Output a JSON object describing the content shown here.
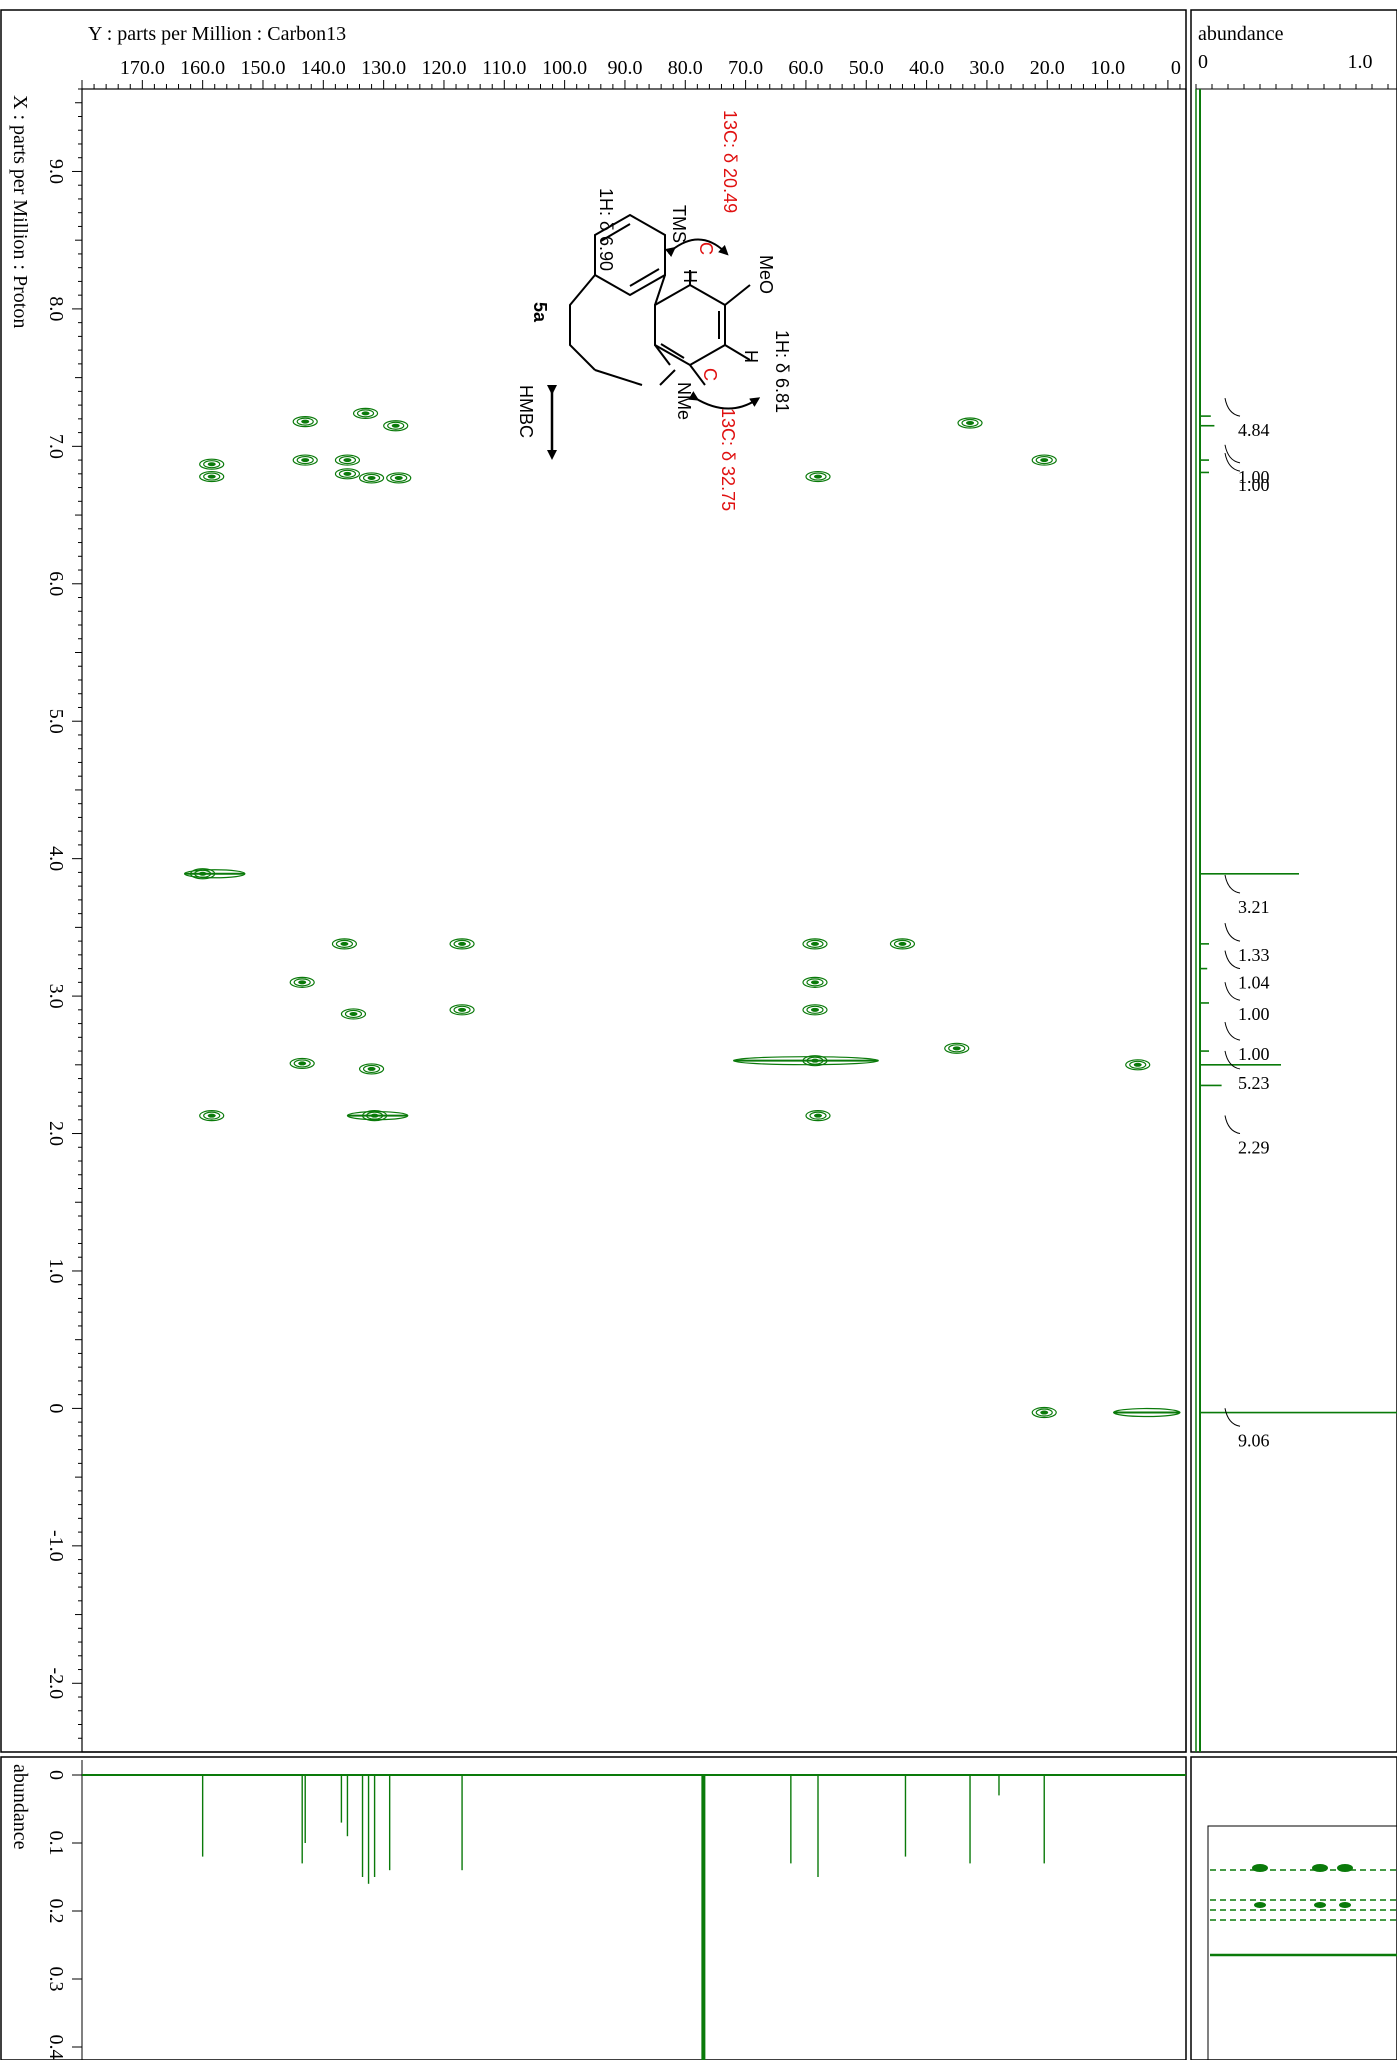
{
  "colors": {
    "peak": "#0a7a0a",
    "frame": "#000000",
    "annotation": "#e01010"
  },
  "chart_data": {
    "type": "heatmap",
    "experiment": "HMBC",
    "y_axis_label": "Y : parts per Million : Carbon13",
    "x_axis_label": "X : parts per Million : Proton",
    "carbon_ticks": [
      "170.0",
      "160.0",
      "150.0",
      "140.0",
      "130.0",
      "120.0",
      "110.0",
      "100.0",
      "90.0",
      "80.0",
      "70.0",
      "60.0",
      "50.0",
      "40.0",
      "30.0",
      "20.0",
      "10.0",
      "0"
    ],
    "carbon_range": [
      180.0,
      -3.0
    ],
    "proton_ticks": [
      "9.0",
      "8.0",
      "7.0",
      "6.0",
      "5.0",
      "4.0",
      "3.0",
      "2.0",
      "1.0",
      "0",
      "-1.0",
      "-2.0"
    ],
    "proton_range": [
      9.6,
      -2.5
    ],
    "abundance_label": "abundance",
    "abundance_top_ticks": [
      "0",
      "1.0"
    ],
    "abundance_left_ticks": [
      "0",
      "0.1",
      "0.2",
      "0.3",
      "0.4"
    ],
    "cross_peaks": [
      {
        "c": 158.5,
        "h": 6.87
      },
      {
        "c": 158.5,
        "h": 6.78
      },
      {
        "c": 143.0,
        "h": 7.18
      },
      {
        "c": 143.0,
        "h": 6.9
      },
      {
        "c": 136.0,
        "h": 6.9
      },
      {
        "c": 136.0,
        "h": 6.8
      },
      {
        "c": 133.0,
        "h": 7.24
      },
      {
        "c": 132.0,
        "h": 6.77
      },
      {
        "c": 128.0,
        "h": 7.15
      },
      {
        "c": 127.5,
        "h": 6.77
      },
      {
        "c": 58.0,
        "h": 6.78
      },
      {
        "c": 32.8,
        "h": 7.17
      },
      {
        "c": 20.5,
        "h": 6.9
      },
      {
        "c": 160.0,
        "h": 3.89
      },
      {
        "c": 136.5,
        "h": 3.38
      },
      {
        "c": 143.5,
        "h": 3.1
      },
      {
        "c": 135.0,
        "h": 2.87
      },
      {
        "c": 143.5,
        "h": 2.51
      },
      {
        "c": 132.0,
        "h": 2.47
      },
      {
        "c": 117.0,
        "h": 3.38
      },
      {
        "c": 117.0,
        "h": 2.9
      },
      {
        "c": 58.5,
        "h": 3.38
      },
      {
        "c": 58.5,
        "h": 3.1
      },
      {
        "c": 58.5,
        "h": 2.9
      },
      {
        "c": 58.5,
        "h": 2.53
      },
      {
        "c": 44.0,
        "h": 3.38
      },
      {
        "c": 158.5,
        "h": 2.13
      },
      {
        "c": 131.5,
        "h": 2.13
      },
      {
        "c": 58.0,
        "h": 2.13
      },
      {
        "c": 20.5,
        "h": -0.03
      },
      {
        "c": 35.0,
        "h": 2.62
      },
      {
        "c": 5.0,
        "h": 2.5
      }
    ],
    "ridges": [
      {
        "c1": 72.0,
        "c2": 48.0,
        "h": 2.53
      },
      {
        "c1": 9.0,
        "c2": -2.0,
        "h": -0.03
      },
      {
        "c1": 163.0,
        "c2": 153.0,
        "h": 3.89
      },
      {
        "c1": 136.0,
        "c2": 126.0,
        "h": 2.13
      }
    ],
    "carbon_1d_peaks": [
      {
        "c": 160.0,
        "i": 0.12
      },
      {
        "c": 143.5,
        "i": 0.13
      },
      {
        "c": 143.0,
        "i": 0.1
      },
      {
        "c": 137.0,
        "i": 0.07
      },
      {
        "c": 136.0,
        "i": 0.09
      },
      {
        "c": 133.5,
        "i": 0.15
      },
      {
        "c": 132.5,
        "i": 0.16
      },
      {
        "c": 131.5,
        "i": 0.15
      },
      {
        "c": 129.0,
        "i": 0.14
      },
      {
        "c": 117.0,
        "i": 0.14
      },
      {
        "c": 77.0,
        "i": 0.8
      },
      {
        "c": 62.5,
        "i": 0.13
      },
      {
        "c": 58.0,
        "i": 0.15
      },
      {
        "c": 43.5,
        "i": 0.12
      },
      {
        "c": 32.8,
        "i": 0.13
      },
      {
        "c": 28.0,
        "i": 0.03
      },
      {
        "c": 20.5,
        "i": 0.13
      }
    ],
    "proton_1d_peaks": [
      {
        "h": 7.22,
        "i": 0.06
      },
      {
        "h": 7.15,
        "i": 0.08
      },
      {
        "h": 6.9,
        "i": 0.05
      },
      {
        "h": 6.81,
        "i": 0.05
      },
      {
        "h": 3.89,
        "i": 0.55
      },
      {
        "h": 3.38,
        "i": 0.05
      },
      {
        "h": 3.2,
        "i": 0.04
      },
      {
        "h": 2.95,
        "i": 0.05
      },
      {
        "h": 2.6,
        "i": 0.05
      },
      {
        "h": 2.5,
        "i": 0.45
      },
      {
        "h": 2.35,
        "i": 0.12
      },
      {
        "h": -0.03,
        "i": 1.1
      }
    ],
    "integrals": [
      {
        "h": 7.22,
        "label": "4.84"
      },
      {
        "h": 6.88,
        "label": "1.00"
      },
      {
        "h": 6.82,
        "label": "1.00"
      },
      {
        "h": 3.75,
        "label": "3.21"
      },
      {
        "h": 3.4,
        "label": "1.33"
      },
      {
        "h": 3.2,
        "label": "1.04"
      },
      {
        "h": 2.97,
        "label": "1.00"
      },
      {
        "h": 2.68,
        "label": "1.00"
      },
      {
        "h": 2.47,
        "label": "5.23"
      },
      {
        "h": 2.0,
        "label": "2.29"
      },
      {
        "h": -0.13,
        "label": "9.06"
      }
    ]
  },
  "annotations": {
    "c_shift_top": "13C: δ 20.49",
    "c_shift_bottom": "13C: δ 32.75",
    "h_shift_left": "1H: δ 6.90",
    "h_shift_right": "1H: δ 6.81",
    "label_tms": "TMS",
    "label_meo": "MeO",
    "label_nme": "NMe",
    "label_h": "H",
    "label_c": "C",
    "compound": "5a",
    "experiment": "HMBC"
  }
}
